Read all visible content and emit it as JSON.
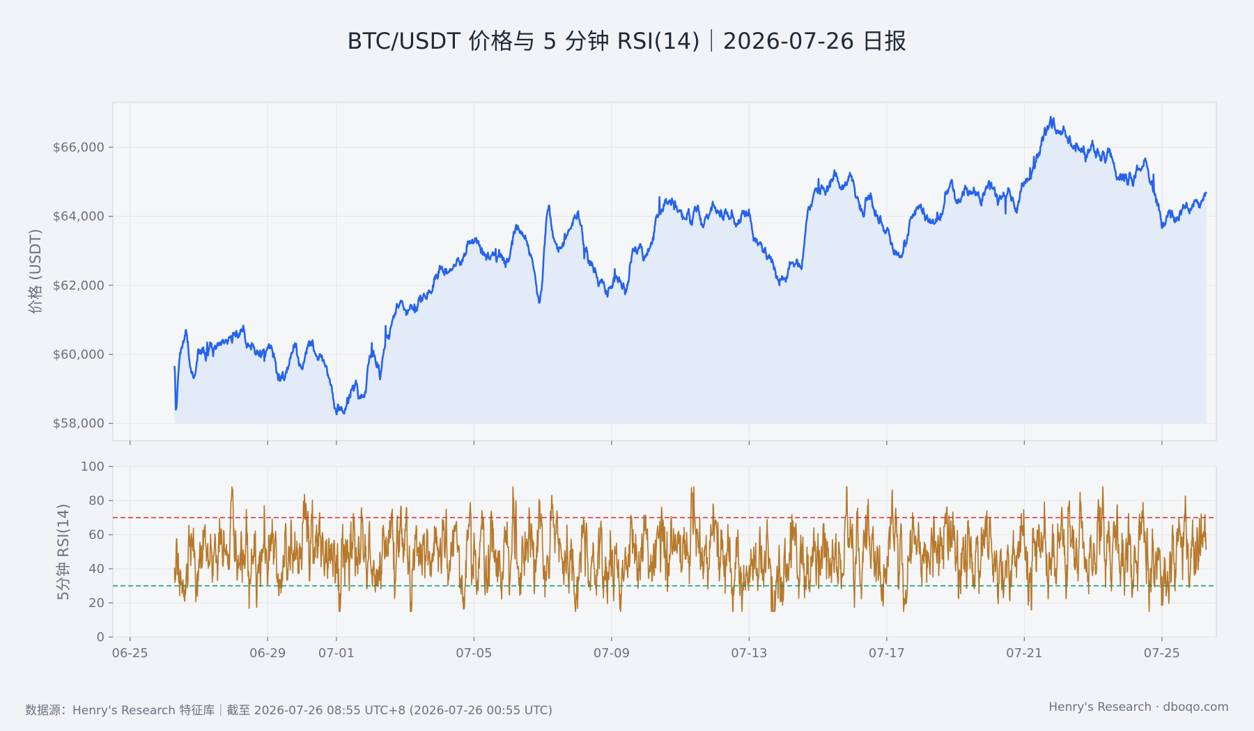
{
  "title": "BTC/USDT 价格与 5 分钟 RSI(14)｜2026-07-26 日报",
  "footer": {
    "left": "数据源：Henry's Research 特征库｜截至 2026-07-26 08:55 UTC+8 (2026-07-26 00:55 UTC)",
    "right": "Henry's Research · dboqo.com"
  },
  "colors": {
    "price_line": "#2563eb",
    "price_fill": "#e3eaf8",
    "rsi_line": "#b7792a",
    "overbought": "#dc2626",
    "oversold": "#059669",
    "plot_bg": "#f5f6f8",
    "grid": "#e2e5ea"
  },
  "chart_data": [
    {
      "type": "area",
      "ylabel": "价格 (USDT)",
      "ylim": [
        57500,
        67300
      ],
      "yticks": [
        58000,
        60000,
        62000,
        64000,
        66000
      ],
      "ytick_labels": [
        "$58,000",
        "$60,000",
        "$62,000",
        "$64,000",
        "$66,000"
      ],
      "xlim": [
        "2026-06-24T12:00",
        "2026-07-26T14:00"
      ],
      "grid": true,
      "series": [
        {
          "x_start": "2026-06-26T07:00",
          "x_end": "2026-07-26T07:00",
          "anchors": [
            [
              "06-26 07:00",
              59700
            ],
            [
              "06-26 08:00",
              58500
            ],
            [
              "06-26 11:00",
              60000
            ],
            [
              "06-26 15:00",
              60600
            ],
            [
              "06-26 20:00",
              59200
            ],
            [
              "06-27 00:00",
              60000
            ],
            [
              "06-27 12:00",
              60200
            ],
            [
              "06-28 00:00",
              60500
            ],
            [
              "06-28 06:00",
              60700
            ],
            [
              "06-28 12:00",
              60200
            ],
            [
              "06-29 00:00",
              60100
            ],
            [
              "06-29 08:00",
              59400
            ],
            [
              "06-29 12:00",
              59700
            ],
            [
              "06-29 18:00",
              60200
            ],
            [
              "06-30 00:00",
              59600
            ],
            [
              "06-30 06:00",
              60400
            ],
            [
              "06-30 12:00",
              60000
            ],
            [
              "06-30 18:00",
              59500
            ],
            [
              "07-01 00:00",
              58600
            ],
            [
              "07-01 06:00",
              58400
            ],
            [
              "07-01 12:00",
              59100
            ],
            [
              "07-01 18:00",
              58600
            ],
            [
              "07-02 00:00",
              60000
            ],
            [
              "07-02 06:00",
              59500
            ],
            [
              "07-02 12:00",
              60600
            ],
            [
              "07-02 18:00",
              61500
            ],
            [
              "07-03 00:00",
              61300
            ],
            [
              "07-03 12:00",
              61600
            ],
            [
              "07-04 00:00",
              62300
            ],
            [
              "07-04 12:00",
              62600
            ],
            [
              "07-05 00:00",
              63300
            ],
            [
              "07-05 12:00",
              62800
            ],
            [
              "07-06 00:00",
              62800
            ],
            [
              "07-06 06:00",
              63800
            ],
            [
              "07-06 12:00",
              63200
            ],
            [
              "07-06 18:00",
              62500
            ],
            [
              "07-06 22:00",
              61700
            ],
            [
              "07-07 04:00",
              64300
            ],
            [
              "07-07 10:00",
              63000
            ],
            [
              "07-07 16:00",
              63500
            ],
            [
              "07-08 00:00",
              64100
            ],
            [
              "07-08 08:00",
              62800
            ],
            [
              "07-08 14:00",
              62000
            ],
            [
              "07-08 20:00",
              61900
            ],
            [
              "07-09 04:00",
              62300
            ],
            [
              "07-09 10:00",
              61900
            ],
            [
              "07-09 16:00",
              63000
            ],
            [
              "07-10 00:00",
              62900
            ],
            [
              "07-10 08:00",
              64000
            ],
            [
              "07-10 14:00",
              64400
            ],
            [
              "07-11 00:00",
              64000
            ],
            [
              "07-11 12:00",
              64100
            ],
            [
              "07-12 00:00",
              64200
            ],
            [
              "07-12 12:00",
              63900
            ],
            [
              "07-13 00:00",
              64100
            ],
            [
              "07-13 06:00",
              63200
            ],
            [
              "07-13 12:00",
              62800
            ],
            [
              "07-13 18:00",
              62300
            ],
            [
              "07-14 00:00",
              62100
            ],
            [
              "07-14 06:00",
              62600
            ],
            [
              "07-14 12:00",
              62700
            ],
            [
              "07-14 18:00",
              64600
            ],
            [
              "07-15 00:00",
              64800
            ],
            [
              "07-15 06:00",
              64600
            ],
            [
              "07-15 12:00",
              65200
            ],
            [
              "07-15 18:00",
              64800
            ],
            [
              "07-16 00:00",
              64900
            ],
            [
              "07-16 06:00",
              64200
            ],
            [
              "07-16 12:00",
              64600
            ],
            [
              "07-16 18:00",
              64000
            ],
            [
              "07-17 00:00",
              63600
            ],
            [
              "07-17 06:00",
              62900
            ],
            [
              "07-17 12:00",
              63000
            ],
            [
              "07-17 18:00",
              64000
            ],
            [
              "07-18 00:00",
              64000
            ],
            [
              "07-18 12:00",
              64000
            ],
            [
              "07-19 00:00",
              64700
            ],
            [
              "07-19 12:00",
              64700
            ],
            [
              "07-20 00:00",
              64500
            ],
            [
              "07-20 06:00",
              64400
            ],
            [
              "07-20 12:00",
              64800
            ],
            [
              "07-20 18:00",
              64300
            ],
            [
              "07-21 00:00",
              65200
            ],
            [
              "07-21 06:00",
              65400
            ],
            [
              "07-21 12:00",
              66200
            ],
            [
              "07-21 18:00",
              66700
            ],
            [
              "07-22 00:00",
              66300
            ],
            [
              "07-22 06:00",
              66500
            ],
            [
              "07-22 12:00",
              66000
            ],
            [
              "07-22 18:00",
              65800
            ],
            [
              "07-23 00:00",
              66000
            ],
            [
              "07-23 06:00",
              65600
            ],
            [
              "07-23 12:00",
              65800
            ],
            [
              "07-23 18:00",
              65000
            ],
            [
              "07-24 00:00",
              64900
            ],
            [
              "07-24 06:00",
              65200
            ],
            [
              "07-24 12:00",
              65400
            ],
            [
              "07-24 18:00",
              64800
            ],
            [
              "07-25 00:00",
              64100
            ],
            [
              "07-25 06:00",
              64100
            ],
            [
              "07-25 12:00",
              63900
            ],
            [
              "07-25 18:00",
              64200
            ],
            [
              "07-26 00:00",
              64300
            ],
            [
              "07-26 07:00",
              64500
            ]
          ]
        }
      ]
    },
    {
      "type": "line",
      "ylabel": "5分钟 RSI(14)",
      "ylim": [
        0,
        100
      ],
      "yticks": [
        0,
        20,
        40,
        60,
        80,
        100
      ],
      "ytick_labels": [
        "0",
        "20",
        "40",
        "60",
        "80",
        "100"
      ],
      "xlim": [
        "2026-06-24T12:00",
        "2026-07-26T14:00"
      ],
      "xticks": [
        "2026-06-25",
        "2026-06-29",
        "2026-07-01",
        "2026-07-05",
        "2026-07-09",
        "2026-07-13",
        "2026-07-17",
        "2026-07-21",
        "2026-07-25"
      ],
      "xtick_labels": [
        "06-25",
        "06-29",
        "07-01",
        "07-05",
        "07-09",
        "07-13",
        "07-17",
        "07-21",
        "07-25"
      ],
      "reference_lines": [
        {
          "y": 70,
          "color": "#dc2626",
          "style": "dashed"
        },
        {
          "y": 30,
          "color": "#059669",
          "style": "dashed"
        }
      ],
      "grid": true,
      "series": [
        {
          "x_start": "2026-06-26T07:00",
          "x_end": "2026-07-26T07:00",
          "typical_min": 15,
          "typical_max": 88,
          "center": 50
        }
      ]
    }
  ]
}
